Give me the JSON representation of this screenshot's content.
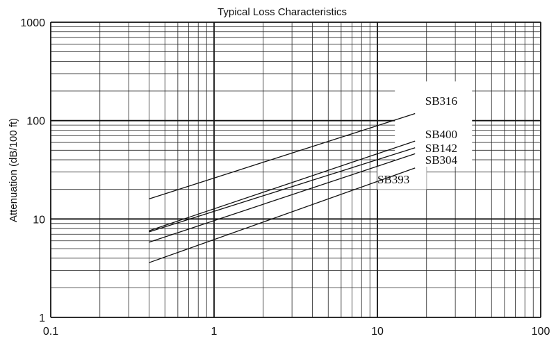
{
  "chart_data": {
    "type": "line",
    "title": "Typical Loss Characteristics",
    "xlabel": "",
    "ylabel": "Attenuation (dB/100 ft)",
    "x_scale": "log",
    "y_scale": "log",
    "xlim": [
      0.1,
      100
    ],
    "ylim": [
      1,
      1000
    ],
    "grid": true,
    "x_ticks": [
      "0.1",
      "1",
      "10",
      "100"
    ],
    "y_ticks": [
      "1",
      "10",
      "100",
      "1000"
    ],
    "series": [
      {
        "name": "SB316",
        "x": [
          0.4,
          17
        ],
        "y": [
          16,
          118
        ]
      },
      {
        "name": "SB400",
        "x": [
          0.4,
          17
        ],
        "y": [
          7.6,
          62
        ]
      },
      {
        "name": "SB142",
        "x": [
          0.4,
          17
        ],
        "y": [
          7.4,
          53
        ]
      },
      {
        "name": "SB304",
        "x": [
          0.4,
          17
        ],
        "y": [
          5.8,
          46
        ]
      },
      {
        "name": "SB393",
        "x": [
          0.4,
          17
        ],
        "y": [
          3.6,
          33
        ]
      }
    ]
  }
}
